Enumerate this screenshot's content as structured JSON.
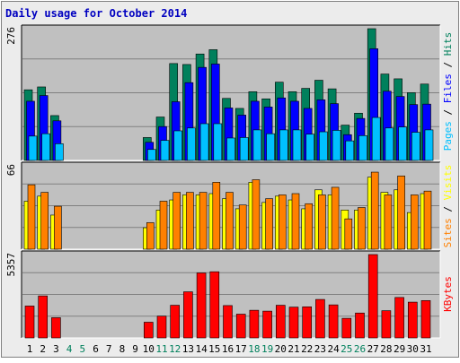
{
  "chart_data": [
    {
      "type": "bar",
      "title": "Daily usage for October 2014",
      "panel": "top",
      "ymax_label": "276",
      "ylabel": "Pages / Files / Hits",
      "ylabel_parts": [
        "Pages",
        "Files",
        "Hits"
      ],
      "ylim": [
        0,
        276
      ],
      "categories": [
        "1",
        "2",
        "3",
        "4",
        "5",
        "6",
        "7",
        "8",
        "9",
        "10",
        "11",
        "12",
        "13",
        "14",
        "15",
        "16",
        "17",
        "18",
        "19",
        "20",
        "21",
        "22",
        "23",
        "24",
        "25",
        "26",
        "27",
        "28",
        "29",
        "30",
        "31"
      ],
      "weekend_days": [
        "4",
        "5",
        "11",
        "12",
        "18",
        "19",
        "25",
        "26"
      ],
      "series": [
        {
          "name": "Hits",
          "color": "#00805c",
          "values": [
            148,
            154,
            94,
            0,
            0,
            0,
            0,
            0,
            0,
            48,
            91,
            203,
            201,
            223,
            232,
            130,
            109,
            144,
            129,
            164,
            144,
            151,
            168,
            150,
            74,
            99,
            276,
            181,
            171,
            142,
            160
          ]
        },
        {
          "name": "Files",
          "color": "#0000ff",
          "values": [
            124,
            136,
            83,
            0,
            0,
            0,
            0,
            0,
            0,
            38,
            71,
            123,
            163,
            195,
            202,
            110,
            95,
            124,
            112,
            131,
            124,
            109,
            127,
            119,
            54,
            88,
            234,
            145,
            134,
            117,
            118
          ]
        },
        {
          "name": "Pages",
          "color": "#00c0ff",
          "values": [
            51,
            56,
            35,
            0,
            0,
            0,
            0,
            0,
            0,
            23,
            42,
            62,
            68,
            77,
            77,
            47,
            48,
            64,
            56,
            64,
            64,
            55,
            60,
            63,
            41,
            52,
            90,
            68,
            70,
            59,
            64
          ]
        }
      ]
    },
    {
      "type": "bar",
      "panel": "middle",
      "ymax_label": "66",
      "ylabel": "Sites / Visits",
      "ylabel_parts": [
        "Sites",
        "Visits"
      ],
      "ylim": [
        0,
        66
      ],
      "categories": [
        "1",
        "2",
        "3",
        "4",
        "5",
        "6",
        "7",
        "8",
        "9",
        "10",
        "11",
        "12",
        "13",
        "14",
        "15",
        "16",
        "17",
        "18",
        "19",
        "20",
        "21",
        "22",
        "23",
        "24",
        "25",
        "26",
        "27",
        "28",
        "29",
        "30",
        "31"
      ],
      "series": [
        {
          "name": "Visits",
          "color": "#ffff00",
          "values": [
            38,
            42,
            27,
            0,
            0,
            0,
            0,
            0,
            0,
            17,
            31,
            39,
            43,
            43,
            44,
            40,
            32,
            53,
            37,
            42,
            39,
            32,
            47,
            43,
            31,
            31,
            57,
            45,
            47,
            29,
            44
          ]
        },
        {
          "name": "Sites",
          "color": "#ff8000",
          "values": [
            51,
            45,
            34,
            0,
            0,
            0,
            0,
            0,
            0,
            21,
            38,
            45,
            45,
            45,
            53,
            45,
            35,
            55,
            40,
            43,
            44,
            36,
            43,
            49,
            24,
            33,
            61,
            43,
            58,
            43,
            46
          ]
        }
      ]
    },
    {
      "type": "bar",
      "panel": "bottom",
      "ymax_label": "5357",
      "ylabel": "KBytes",
      "ylabel_parts": [
        "KBytes"
      ],
      "ylim": [
        0,
        5357
      ],
      "categories": [
        "1",
        "2",
        "3",
        "4",
        "5",
        "6",
        "7",
        "8",
        "9",
        "10",
        "11",
        "12",
        "13",
        "14",
        "15",
        "16",
        "17",
        "18",
        "19",
        "20",
        "21",
        "22",
        "23",
        "24",
        "25",
        "26",
        "27",
        "28",
        "29",
        "30",
        "31"
      ],
      "series": [
        {
          "name": "KBytes",
          "color": "#ff0000",
          "values": [
            2050,
            2700,
            1300,
            0,
            0,
            0,
            0,
            0,
            0,
            1010,
            1400,
            2100,
            2964,
            4177,
            4253,
            2079,
            1527,
            1778,
            1722,
            2100,
            1980,
            2000,
            2473,
            2124,
            1260,
            1600,
            5357,
            1750,
            2600,
            2300,
            2400
          ]
        }
      ]
    }
  ],
  "colors": {
    "background": "#ececec",
    "plot_background": "#c0c0c0",
    "grid": "#808080",
    "title": "#0000c0",
    "axis_text": "#000000",
    "weekend_label": "#00805c",
    "bar_outline": "#000000"
  }
}
